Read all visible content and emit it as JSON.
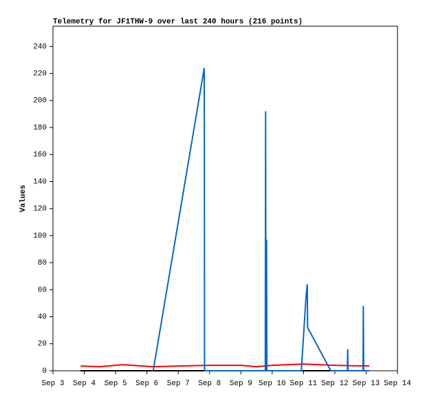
{
  "chart_data": {
    "type": "line",
    "title": "Telemetry for JF1THW-9 over last 240 hours (216 points)",
    "y_label": "Values",
    "xlim": [
      3,
      14
    ],
    "xticks": [
      {
        "value": 3,
        "label": "Sep 3"
      },
      {
        "value": 4,
        "label": "Sep 4"
      },
      {
        "value": 5,
        "label": "Sep 5"
      },
      {
        "value": 6,
        "label": "Sep 6"
      },
      {
        "value": 7,
        "label": "Sep 7"
      },
      {
        "value": 8,
        "label": "Sep 8"
      },
      {
        "value": 9,
        "label": "Sep 9"
      },
      {
        "value": 10,
        "label": "Sep 10"
      },
      {
        "value": 11,
        "label": "Sep 11"
      },
      {
        "value": 12,
        "label": "Sep 12"
      },
      {
        "value": 13,
        "label": "Sep 13"
      },
      {
        "value": 14,
        "label": "Sep 14"
      }
    ],
    "ylim": [
      0,
      255
    ],
    "yticks": [
      0,
      20,
      40,
      60,
      80,
      100,
      120,
      140,
      160,
      180,
      200,
      220,
      240
    ],
    "series": [
      {
        "color": "#000000",
        "x": [
          3.88,
          13.1
        ],
        "values": [
          0,
          0
        ]
      },
      {
        "color": "#ff0000",
        "x": [
          3.88,
          4.5,
          5.0,
          5.2,
          6.2,
          7.0,
          8.0,
          9.0,
          9.5,
          10.0,
          10.5,
          11.0,
          12.0,
          13.1
        ],
        "values": [
          3.5,
          3,
          4,
          4.5,
          3,
          3.5,
          4,
          4,
          3,
          4,
          4.5,
          5,
          4,
          3.5
        ]
      },
      {
        "color": "#0066cc",
        "x": [
          6.2,
          7.83,
          7.84,
          9.78,
          9.78,
          9.79,
          9.8,
          9.82,
          9.83,
          10.93,
          11.08,
          11.12,
          11.13,
          11.87,
          12.4,
          12.41,
          12.42,
          12.9,
          12.91,
          12.92,
          13.1
        ],
        "values": [
          0,
          224,
          0,
          0,
          32,
          192,
          0,
          97,
          0,
          0,
          55,
          64,
          32,
          0,
          0,
          16,
          0,
          0,
          48,
          0,
          0
        ]
      }
    ]
  }
}
